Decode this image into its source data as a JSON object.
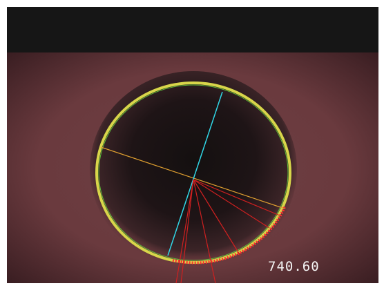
{
  "readout": "740.60"
}
